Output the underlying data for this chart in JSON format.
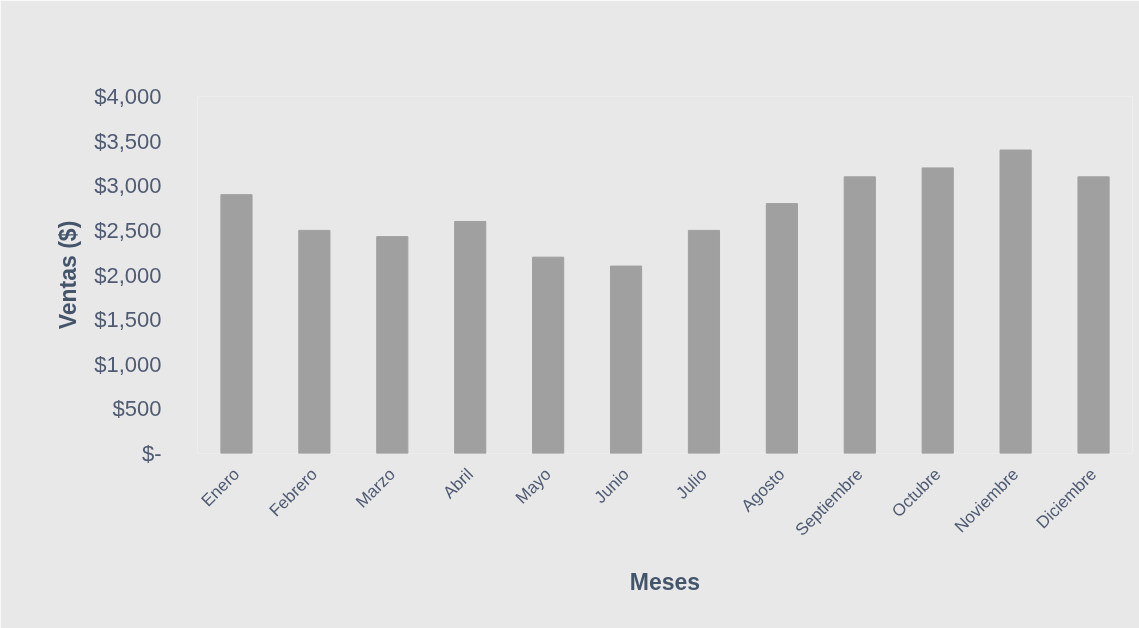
{
  "chart_data": {
    "type": "bar",
    "xlabel": "Meses",
    "ylabel": "Ventas ($)",
    "categories": [
      "Enero",
      "Febrero",
      "Marzo",
      "Abril",
      "Mayo",
      "Junio",
      "Julio",
      "Agosto",
      "Septiembre",
      "Octubre",
      "Noviembre",
      "Diciembre"
    ],
    "values": [
      2900,
      2500,
      2430,
      2600,
      2200,
      2100,
      2500,
      2800,
      3100,
      3200,
      3400,
      3100
    ],
    "color": "#a0a0a0",
    "ylim": [
      0,
      4000
    ],
    "yticks": [
      {
        "value": 0,
        "label": "$-"
      },
      {
        "value": 500,
        "label": "$500"
      },
      {
        "value": 1000,
        "label": "$1,000"
      },
      {
        "value": 1500,
        "label": "$1,500"
      },
      {
        "value": 2000,
        "label": "$2,000"
      },
      {
        "value": 2500,
        "label": "$2,500"
      },
      {
        "value": 3000,
        "label": "$3,000"
      },
      {
        "value": 3500,
        "label": "$3,500"
      },
      {
        "value": 4000,
        "label": "$4,000"
      }
    ]
  }
}
